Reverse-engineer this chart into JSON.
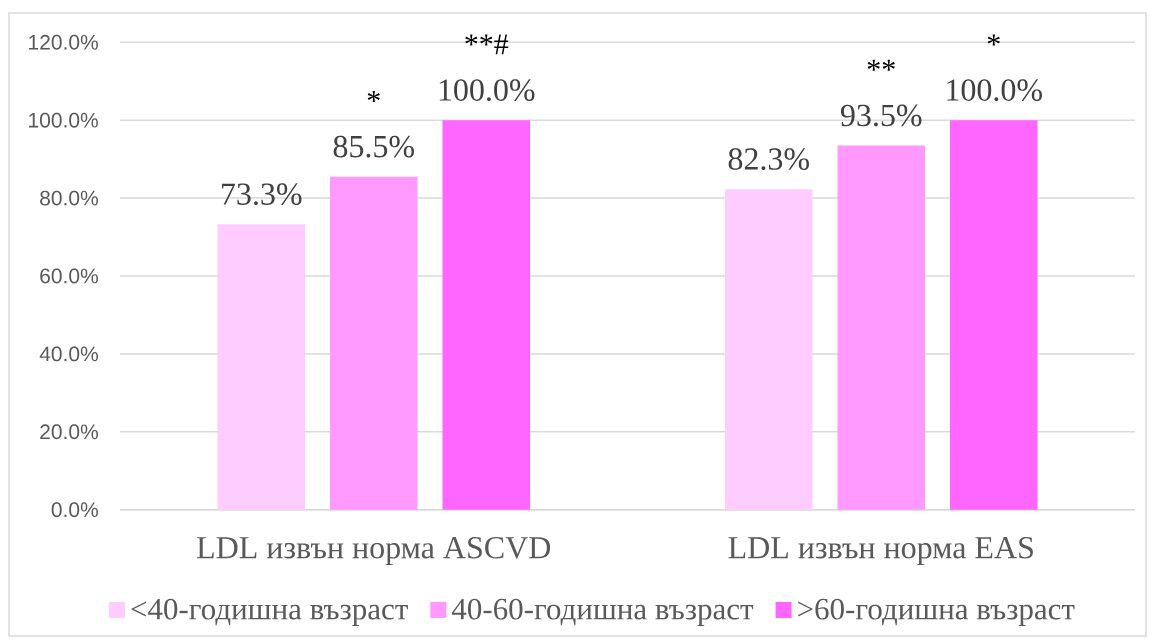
{
  "chart_data": {
    "type": "bar",
    "categories": [
      "LDL извън норма ASCVD",
      "LDL извън норма EAS"
    ],
    "series": [
      {
        "name": "<40-годишна възраст",
        "color": "#ffccff",
        "values": [
          73.3,
          82.3
        ],
        "value_labels": [
          "73.3%",
          "82.3%"
        ]
      },
      {
        "name": "40-60-годишна възраст",
        "color": "#ff99ff",
        "values": [
          85.5,
          93.5
        ],
        "value_labels": [
          "85.5%",
          "93.5%"
        ]
      },
      {
        "name": ">60-годишна възраст",
        "color": "#ff66ff",
        "values": [
          100,
          100
        ],
        "value_labels": [
          "100.0%",
          "100.0%"
        ]
      }
    ],
    "ylim": [
      0,
      120
    ],
    "yticks": [
      {
        "value": 0,
        "label": "0.0%"
      },
      {
        "value": 20,
        "label": "20.0%"
      },
      {
        "value": 40,
        "label": "40.0%"
      },
      {
        "value": 60,
        "label": "60.0%"
      },
      {
        "value": 80,
        "label": "80.0%"
      },
      {
        "value": 100,
        "label": "100.0%"
      },
      {
        "value": 120,
        "label": "120.0%"
      }
    ],
    "grid": "y",
    "legend": "bottom",
    "annotations": [
      {
        "text": "*",
        "x": "LDL извън норма ASCVD",
        "y": 85.5
      },
      "**#",
      {
        "text": "**",
        "x": "LDL извън норма EAS",
        "y": 93.5
      },
      "*"
    ]
  }
}
